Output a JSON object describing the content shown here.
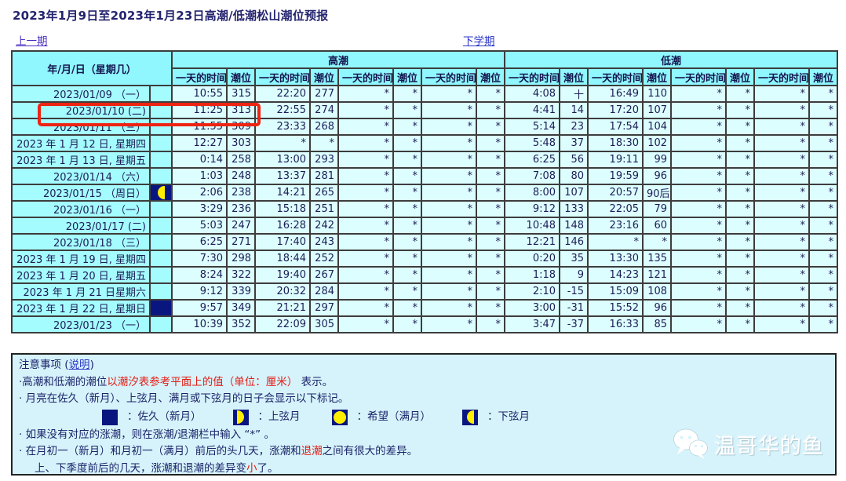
{
  "page": {
    "title": "2023年1月9日至2023年1月23日高潮/低潮松山潮位预报",
    "prev_link": "上一期",
    "next_link": "下学期"
  },
  "table": {
    "date_header": "年/月/日（星期几）",
    "high_header": "高潮",
    "low_header": "低潮",
    "time_header": "一天的时间",
    "level_header": "潮位",
    "rows": [
      {
        "date": "2023/01/09 （一）",
        "moon": "",
        "cells": [
          "10:55",
          "315",
          "22:20",
          "277",
          "*",
          "*",
          "*",
          "*",
          "4:08",
          "十",
          "16:49",
          "110",
          "*",
          "*",
          "*",
          "*"
        ]
      },
      {
        "date": "2023/01/10 (二)",
        "moon": "",
        "cells": [
          "11:25",
          "313",
          "22:55",
          "274",
          "*",
          "*",
          "*",
          "*",
          "4:41",
          "14",
          "17:20",
          "107",
          "*",
          "*",
          "*",
          "*"
        ]
      },
      {
        "date": "2023/01/11 （三）",
        "moon": "",
        "cells": [
          "11:55",
          "309",
          "23:33",
          "268",
          "*",
          "*",
          "*",
          "*",
          "5:14",
          "23",
          "17:54",
          "104",
          "*",
          "*",
          "*",
          "*"
        ]
      },
      {
        "date": "2023 年 1 月 12 日, 星期四",
        "moon": "",
        "cells": [
          "12:27",
          "303",
          "*",
          "*",
          "*",
          "*",
          "*",
          "*",
          "5:48",
          "37",
          "18:30",
          "102",
          "*",
          "*",
          "*",
          "*"
        ]
      },
      {
        "date": "2023 年 1 月 13 日, 星期五",
        "moon": "",
        "cells": [
          "0:14",
          "258",
          "13:00",
          "293",
          "*",
          "*",
          "*",
          "*",
          "6:25",
          "56",
          "19:11",
          "99",
          "*",
          "*",
          "*",
          "*"
        ]
      },
      {
        "date": "2023/01/14 （六）",
        "moon": "",
        "cells": [
          "1:03",
          "248",
          "13:37",
          "281",
          "*",
          "*",
          "*",
          "*",
          "7:08",
          "80",
          "19:59",
          "96",
          "*",
          "*",
          "*",
          "*"
        ]
      },
      {
        "date": "2023/01/15 （周日）",
        "moon": "last-quarter",
        "cells": [
          "2:06",
          "238",
          "14:21",
          "265",
          "*",
          "*",
          "*",
          "*",
          "8:00",
          "107",
          "20:57",
          "90后",
          "*",
          "*",
          "*",
          "*"
        ]
      },
      {
        "date": "2023/01/16 （一）",
        "moon": "",
        "cells": [
          "3:29",
          "236",
          "15:18",
          "251",
          "*",
          "*",
          "*",
          "*",
          "9:12",
          "133",
          "22:05",
          "79",
          "*",
          "*",
          "*",
          "*"
        ]
      },
      {
        "date": "2023/01/17 (二)",
        "moon": "",
        "cells": [
          "5:03",
          "247",
          "16:28",
          "242",
          "*",
          "*",
          "*",
          "*",
          "10:48",
          "148",
          "23:16",
          "60",
          "*",
          "*",
          "*",
          "*"
        ]
      },
      {
        "date": "2023/01/18 （三）",
        "moon": "",
        "cells": [
          "6:25",
          "271",
          "17:40",
          "243",
          "*",
          "*",
          "*",
          "*",
          "12:21",
          "146",
          "*",
          "*",
          "*",
          "*",
          "*",
          "*"
        ]
      },
      {
        "date": "2023 年 1 月 19 日, 星期四",
        "moon": "",
        "cells": [
          "7:30",
          "298",
          "18:44",
          "252",
          "*",
          "*",
          "*",
          "*",
          "0:20",
          "35",
          "13:30",
          "135",
          "*",
          "*",
          "*",
          "*"
        ]
      },
      {
        "date": "2023 年 1 月 20 日, 星期五",
        "moon": "",
        "cells": [
          "8:24",
          "322",
          "19:40",
          "267",
          "*",
          "*",
          "*",
          "*",
          "1:18",
          "9",
          "14:23",
          "121",
          "*",
          "*",
          "*",
          "*"
        ]
      },
      {
        "date": "2023 年 1 月 21 日星期六",
        "moon": "",
        "cells": [
          "9:12",
          "339",
          "20:32",
          "284",
          "*",
          "*",
          "*",
          "*",
          "2:10",
          "-15",
          "15:09",
          "108",
          "*",
          "*",
          "*",
          "*"
        ]
      },
      {
        "date": "2023 年 1 月 22 日, 星期日",
        "moon": "new-moon",
        "cells": [
          "9:57",
          "349",
          "21:21",
          "297",
          "*",
          "*",
          "*",
          "*",
          "3:00",
          "-31",
          "15:52",
          "96",
          "*",
          "*",
          "*",
          "*"
        ]
      },
      {
        "date": "2023/01/23 （一）",
        "moon": "",
        "cells": [
          "10:39",
          "352",
          "22:09",
          "305",
          "*",
          "*",
          "*",
          "*",
          "3:47",
          "-37",
          "16:33",
          "85",
          "*",
          "*",
          "*",
          "*"
        ]
      }
    ]
  },
  "notes": {
    "heading_prefix": "注意事项 (",
    "heading_link": "说明",
    "heading_suffix": ")",
    "line1_prefix": "·高潮和低潮的潮位",
    "line1_red": "以潮汐表参考平面上的值（单位：厘米）",
    "line1_suffix": " 表示。",
    "line2": "· 月亮在佐久（新月）、上弦月、满月或下弦月的日子会显示以下标记。",
    "legend": [
      {
        "type": "new-moon",
        "label": "：佐久（新月）"
      },
      {
        "type": "first-quarter",
        "label": "：上弦月"
      },
      {
        "type": "full-moon",
        "label": "：希望（满月）"
      },
      {
        "type": "last-quarter",
        "label": "：下弦月"
      }
    ],
    "line3": "· 如果没有对应的涨潮，则在涨潮/退潮栏中输入 “*” 。",
    "line4_prefix": "· 在月初一（新月）和月初一（满月）前后的头几天，涨潮和",
    "line4_red": "退潮",
    "line4_suffix": "之间有很大的差异。",
    "line5_prefix": "上、下季度前后的几天，涨潮和退潮的差异变",
    "line5_red": "小",
    "line5_suffix": "了。"
  },
  "watermark": {
    "text": "温哥华的鱼",
    "icon": "wechat-icon"
  },
  "colors": {
    "header_bg": "#8ff7fd",
    "date_bg": "#a5fcff",
    "cell_bg": "#ddfeff",
    "notes_bg": "#d6f3fb",
    "moon_navy": "#0a1680",
    "moon_yellow": "#ffee00",
    "highlight_red": "#ee2412",
    "note_red": "#e31b12",
    "text_navy": "#1b1b6b"
  }
}
